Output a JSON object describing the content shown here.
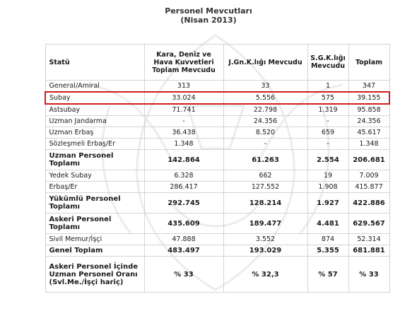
{
  "title": "Personel Mevcutları",
  "subtitle": "(Nisan 2013)",
  "columns": [
    "Statü",
    "Kara, Deniz ve Hava Kuvvetleri Toplam Mevcudu",
    "J.Gn.K.lığı Mevcudu",
    "S.G.K.lığı Mevcudu",
    "Toplam"
  ],
  "rows": [
    {
      "label": "General/Amiral",
      "c1": "313",
      "c2": "33",
      "c3": "1",
      "c4": "347",
      "bold": false,
      "tall": 1,
      "highlight": false
    },
    {
      "label": "Subay",
      "c1": "33.024",
      "c2": "5.556",
      "c3": "575",
      "c4": "39.155",
      "bold": false,
      "tall": 1,
      "highlight": true
    },
    {
      "label": "Astsubay",
      "c1": "71.741",
      "c2": "22.798",
      "c3": "1.319",
      "c4": "95.858",
      "bold": false,
      "tall": 1,
      "highlight": false
    },
    {
      "label": "Uzman Jandarma",
      "c1": "-",
      "c2": "24.356",
      "c3": "-",
      "c4": "24.356",
      "bold": false,
      "tall": 1,
      "highlight": false
    },
    {
      "label": "Uzman Erbaş",
      "c1": "36.438",
      "c2": "8.520",
      "c3": "659",
      "c4": "45.617",
      "bold": false,
      "tall": 1,
      "highlight": false
    },
    {
      "label": "Sözleşmeli Erbaş/Er",
      "c1": "1.348",
      "c2": "-",
      "c3": "-",
      "c4": "1.348",
      "bold": false,
      "tall": 1,
      "highlight": false
    },
    {
      "label": "Uzman Personel Toplamı",
      "c1": "142.864",
      "c2": "61.263",
      "c3": "2.554",
      "c4": "206.681",
      "bold": true,
      "tall": 2,
      "highlight": false
    },
    {
      "label": "Yedek Subay",
      "c1": "6.328",
      "c2": "662",
      "c3": "19",
      "c4": "7.009",
      "bold": false,
      "tall": 1,
      "highlight": false
    },
    {
      "label": "Erbaş/Er",
      "c1": "286.417",
      "c2": "127.552",
      "c3": "1.908",
      "c4": "415.877",
      "bold": false,
      "tall": 1,
      "highlight": false
    },
    {
      "label": "Yükümlü Personel Toplamı",
      "c1": "292.745",
      "c2": "128.214",
      "c3": "1.927",
      "c4": "422.886",
      "bold": true,
      "tall": 2,
      "highlight": false
    },
    {
      "label": "Askeri Personel Toplamı",
      "c1": "435.609",
      "c2": "189.477",
      "c3": "4.481",
      "c4": "629.567",
      "bold": true,
      "tall": 2,
      "highlight": false
    },
    {
      "label": "Sivil Memur/İşçi",
      "c1": "47.888",
      "c2": "3.552",
      "c3": "874",
      "c4": "52.314",
      "bold": false,
      "tall": 1,
      "highlight": false
    },
    {
      "label": "Genel Toplam",
      "c1": "483.497",
      "c2": "193.029",
      "c3": "5.355",
      "c4": "681.881",
      "bold": true,
      "tall": 1,
      "highlight": false
    },
    {
      "label": "Askeri Personel İçinde Uzman Personel Oranı (Svl.Me./İşçi hariç)",
      "c1": "% 33",
      "c2": "% 32,3",
      "c3": "% 57",
      "c4": "% 33",
      "bold": true,
      "tall": 4,
      "highlight": false
    }
  ],
  "colors": {
    "highlight": "#cc1e1e",
    "grid": "#d4d4d4",
    "watermark": "#ececec"
  }
}
